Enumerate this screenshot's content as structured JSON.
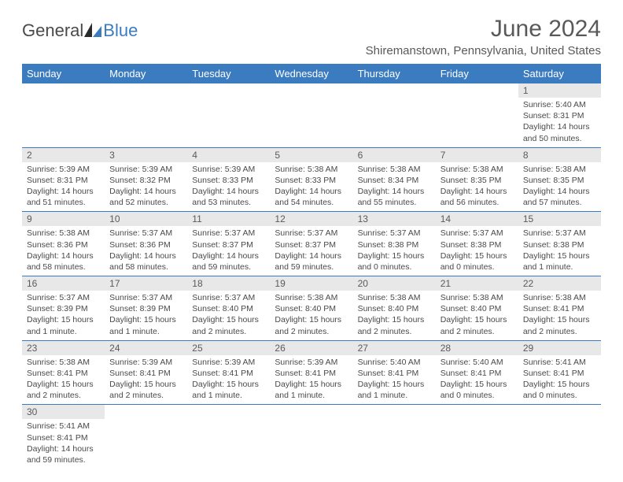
{
  "logo": {
    "text1": "General",
    "text2": "Blue"
  },
  "title": "June 2024",
  "location": "Shiremanstown, Pennsylvania, United States",
  "header_color": "#3b7bbf",
  "days": [
    "Sunday",
    "Monday",
    "Tuesday",
    "Wednesday",
    "Thursday",
    "Friday",
    "Saturday"
  ],
  "weeks": [
    [
      {
        "n": "",
        "sr": "",
        "ss": "",
        "dl": ""
      },
      {
        "n": "",
        "sr": "",
        "ss": "",
        "dl": ""
      },
      {
        "n": "",
        "sr": "",
        "ss": "",
        "dl": ""
      },
      {
        "n": "",
        "sr": "",
        "ss": "",
        "dl": ""
      },
      {
        "n": "",
        "sr": "",
        "ss": "",
        "dl": ""
      },
      {
        "n": "",
        "sr": "",
        "ss": "",
        "dl": ""
      },
      {
        "n": "1",
        "sr": "Sunrise: 5:40 AM",
        "ss": "Sunset: 8:31 PM",
        "dl": "Daylight: 14 hours and 50 minutes."
      }
    ],
    [
      {
        "n": "2",
        "sr": "Sunrise: 5:39 AM",
        "ss": "Sunset: 8:31 PM",
        "dl": "Daylight: 14 hours and 51 minutes."
      },
      {
        "n": "3",
        "sr": "Sunrise: 5:39 AM",
        "ss": "Sunset: 8:32 PM",
        "dl": "Daylight: 14 hours and 52 minutes."
      },
      {
        "n": "4",
        "sr": "Sunrise: 5:39 AM",
        "ss": "Sunset: 8:33 PM",
        "dl": "Daylight: 14 hours and 53 minutes."
      },
      {
        "n": "5",
        "sr": "Sunrise: 5:38 AM",
        "ss": "Sunset: 8:33 PM",
        "dl": "Daylight: 14 hours and 54 minutes."
      },
      {
        "n": "6",
        "sr": "Sunrise: 5:38 AM",
        "ss": "Sunset: 8:34 PM",
        "dl": "Daylight: 14 hours and 55 minutes."
      },
      {
        "n": "7",
        "sr": "Sunrise: 5:38 AM",
        "ss": "Sunset: 8:35 PM",
        "dl": "Daylight: 14 hours and 56 minutes."
      },
      {
        "n": "8",
        "sr": "Sunrise: 5:38 AM",
        "ss": "Sunset: 8:35 PM",
        "dl": "Daylight: 14 hours and 57 minutes."
      }
    ],
    [
      {
        "n": "9",
        "sr": "Sunrise: 5:38 AM",
        "ss": "Sunset: 8:36 PM",
        "dl": "Daylight: 14 hours and 58 minutes."
      },
      {
        "n": "10",
        "sr": "Sunrise: 5:37 AM",
        "ss": "Sunset: 8:36 PM",
        "dl": "Daylight: 14 hours and 58 minutes."
      },
      {
        "n": "11",
        "sr": "Sunrise: 5:37 AM",
        "ss": "Sunset: 8:37 PM",
        "dl": "Daylight: 14 hours and 59 minutes."
      },
      {
        "n": "12",
        "sr": "Sunrise: 5:37 AM",
        "ss": "Sunset: 8:37 PM",
        "dl": "Daylight: 14 hours and 59 minutes."
      },
      {
        "n": "13",
        "sr": "Sunrise: 5:37 AM",
        "ss": "Sunset: 8:38 PM",
        "dl": "Daylight: 15 hours and 0 minutes."
      },
      {
        "n": "14",
        "sr": "Sunrise: 5:37 AM",
        "ss": "Sunset: 8:38 PM",
        "dl": "Daylight: 15 hours and 0 minutes."
      },
      {
        "n": "15",
        "sr": "Sunrise: 5:37 AM",
        "ss": "Sunset: 8:38 PM",
        "dl": "Daylight: 15 hours and 1 minute."
      }
    ],
    [
      {
        "n": "16",
        "sr": "Sunrise: 5:37 AM",
        "ss": "Sunset: 8:39 PM",
        "dl": "Daylight: 15 hours and 1 minute."
      },
      {
        "n": "17",
        "sr": "Sunrise: 5:37 AM",
        "ss": "Sunset: 8:39 PM",
        "dl": "Daylight: 15 hours and 1 minute."
      },
      {
        "n": "18",
        "sr": "Sunrise: 5:37 AM",
        "ss": "Sunset: 8:40 PM",
        "dl": "Daylight: 15 hours and 2 minutes."
      },
      {
        "n": "19",
        "sr": "Sunrise: 5:38 AM",
        "ss": "Sunset: 8:40 PM",
        "dl": "Daylight: 15 hours and 2 minutes."
      },
      {
        "n": "20",
        "sr": "Sunrise: 5:38 AM",
        "ss": "Sunset: 8:40 PM",
        "dl": "Daylight: 15 hours and 2 minutes."
      },
      {
        "n": "21",
        "sr": "Sunrise: 5:38 AM",
        "ss": "Sunset: 8:40 PM",
        "dl": "Daylight: 15 hours and 2 minutes."
      },
      {
        "n": "22",
        "sr": "Sunrise: 5:38 AM",
        "ss": "Sunset: 8:41 PM",
        "dl": "Daylight: 15 hours and 2 minutes."
      }
    ],
    [
      {
        "n": "23",
        "sr": "Sunrise: 5:38 AM",
        "ss": "Sunset: 8:41 PM",
        "dl": "Daylight: 15 hours and 2 minutes."
      },
      {
        "n": "24",
        "sr": "Sunrise: 5:39 AM",
        "ss": "Sunset: 8:41 PM",
        "dl": "Daylight: 15 hours and 2 minutes."
      },
      {
        "n": "25",
        "sr": "Sunrise: 5:39 AM",
        "ss": "Sunset: 8:41 PM",
        "dl": "Daylight: 15 hours and 1 minute."
      },
      {
        "n": "26",
        "sr": "Sunrise: 5:39 AM",
        "ss": "Sunset: 8:41 PM",
        "dl": "Daylight: 15 hours and 1 minute."
      },
      {
        "n": "27",
        "sr": "Sunrise: 5:40 AM",
        "ss": "Sunset: 8:41 PM",
        "dl": "Daylight: 15 hours and 1 minute."
      },
      {
        "n": "28",
        "sr": "Sunrise: 5:40 AM",
        "ss": "Sunset: 8:41 PM",
        "dl": "Daylight: 15 hours and 0 minutes."
      },
      {
        "n": "29",
        "sr": "Sunrise: 5:41 AM",
        "ss": "Sunset: 8:41 PM",
        "dl": "Daylight: 15 hours and 0 minutes."
      }
    ],
    [
      {
        "n": "30",
        "sr": "Sunrise: 5:41 AM",
        "ss": "Sunset: 8:41 PM",
        "dl": "Daylight: 14 hours and 59 minutes."
      },
      {
        "n": "",
        "sr": "",
        "ss": "",
        "dl": ""
      },
      {
        "n": "",
        "sr": "",
        "ss": "",
        "dl": ""
      },
      {
        "n": "",
        "sr": "",
        "ss": "",
        "dl": ""
      },
      {
        "n": "",
        "sr": "",
        "ss": "",
        "dl": ""
      },
      {
        "n": "",
        "sr": "",
        "ss": "",
        "dl": ""
      },
      {
        "n": "",
        "sr": "",
        "ss": "",
        "dl": ""
      }
    ]
  ]
}
